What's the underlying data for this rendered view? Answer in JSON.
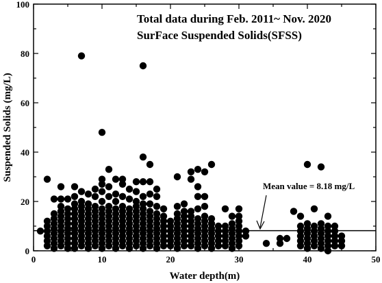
{
  "chart_data": {
    "type": "scatter",
    "title": "Total data during Feb. 2011~ Nov. 2020",
    "subtitle": "SurFace Suspended Solids(SFSS)",
    "xlabel": "Water depth(m)",
    "ylabel": "Suspended Solids (mg/L)",
    "xlim": [
      0,
      50
    ],
    "ylim": [
      0,
      100
    ],
    "xticks": [
      0,
      10,
      20,
      30,
      40,
      50
    ],
    "yticks": [
      0,
      20,
      40,
      60,
      80,
      100
    ],
    "grid": false,
    "legend": "none",
    "mean_line": {
      "y": 8.18,
      "label": "Mean value = 8.18 mg/L"
    },
    "marker_color": "#000000",
    "series": [
      {
        "points": [
          [
            1,
            8
          ],
          [
            2,
            29
          ],
          [
            2,
            12
          ],
          [
            2,
            10
          ],
          [
            2,
            8
          ],
          [
            2,
            6
          ],
          [
            2,
            4
          ],
          [
            2,
            2
          ],
          [
            3,
            21
          ],
          [
            3,
            15
          ],
          [
            3,
            13
          ],
          [
            3,
            11
          ],
          [
            3,
            9
          ],
          [
            3,
            7
          ],
          [
            3,
            5
          ],
          [
            3,
            3
          ],
          [
            3,
            1
          ],
          [
            4,
            26
          ],
          [
            4,
            21
          ],
          [
            4,
            18
          ],
          [
            4,
            16
          ],
          [
            4,
            14
          ],
          [
            4,
            12
          ],
          [
            4,
            10
          ],
          [
            4,
            8
          ],
          [
            4,
            6
          ],
          [
            4,
            4
          ],
          [
            4,
            2
          ],
          [
            5,
            21
          ],
          [
            5,
            17
          ],
          [
            5,
            15
          ],
          [
            5,
            13
          ],
          [
            5,
            11
          ],
          [
            5,
            9
          ],
          [
            5,
            7
          ],
          [
            5,
            5
          ],
          [
            5,
            3
          ],
          [
            5,
            1
          ],
          [
            6,
            26
          ],
          [
            6,
            22
          ],
          [
            6,
            19
          ],
          [
            6,
            17
          ],
          [
            6,
            15
          ],
          [
            6,
            13
          ],
          [
            6,
            11
          ],
          [
            6,
            9
          ],
          [
            6,
            7
          ],
          [
            6,
            5
          ],
          [
            6,
            3
          ],
          [
            6,
            1
          ],
          [
            7,
            79
          ],
          [
            7,
            24
          ],
          [
            7,
            20
          ],
          [
            7,
            18
          ],
          [
            7,
            16
          ],
          [
            7,
            14
          ],
          [
            7,
            12
          ],
          [
            7,
            10
          ],
          [
            7,
            8
          ],
          [
            7,
            6
          ],
          [
            7,
            4
          ],
          [
            7,
            2
          ],
          [
            8,
            23
          ],
          [
            8,
            19
          ],
          [
            8,
            17
          ],
          [
            8,
            15
          ],
          [
            8,
            13
          ],
          [
            8,
            11
          ],
          [
            8,
            9
          ],
          [
            8,
            7
          ],
          [
            8,
            5
          ],
          [
            8,
            3
          ],
          [
            8,
            1
          ],
          [
            9,
            25
          ],
          [
            9,
            22
          ],
          [
            9,
            18
          ],
          [
            9,
            16
          ],
          [
            9,
            14
          ],
          [
            9,
            12
          ],
          [
            9,
            10
          ],
          [
            9,
            8
          ],
          [
            9,
            6
          ],
          [
            9,
            4
          ],
          [
            9,
            2
          ],
          [
            10,
            48
          ],
          [
            10,
            29
          ],
          [
            10,
            27
          ],
          [
            10,
            24
          ],
          [
            10,
            20
          ],
          [
            10,
            17
          ],
          [
            10,
            15
          ],
          [
            10,
            13
          ],
          [
            10,
            11
          ],
          [
            10,
            9
          ],
          [
            10,
            7
          ],
          [
            10,
            5
          ],
          [
            10,
            3
          ],
          [
            10,
            1
          ],
          [
            11,
            33
          ],
          [
            11,
            26
          ],
          [
            11,
            22
          ],
          [
            11,
            18
          ],
          [
            11,
            16
          ],
          [
            11,
            14
          ],
          [
            11,
            12
          ],
          [
            11,
            10
          ],
          [
            11,
            8
          ],
          [
            11,
            6
          ],
          [
            11,
            4
          ],
          [
            11,
            2
          ],
          [
            12,
            29
          ],
          [
            12,
            23
          ],
          [
            12,
            20
          ],
          [
            12,
            17
          ],
          [
            12,
            15
          ],
          [
            12,
            13
          ],
          [
            12,
            11
          ],
          [
            12,
            9
          ],
          [
            12,
            7
          ],
          [
            12,
            5
          ],
          [
            12,
            3
          ],
          [
            12,
            1
          ],
          [
            13,
            29
          ],
          [
            13,
            27
          ],
          [
            13,
            22
          ],
          [
            13,
            18
          ],
          [
            13,
            16
          ],
          [
            13,
            14
          ],
          [
            13,
            12
          ],
          [
            13,
            10
          ],
          [
            13,
            8
          ],
          [
            13,
            6
          ],
          [
            13,
            4
          ],
          [
            13,
            2
          ],
          [
            14,
            25
          ],
          [
            14,
            21
          ],
          [
            14,
            17
          ],
          [
            14,
            15
          ],
          [
            14,
            13
          ],
          [
            14,
            11
          ],
          [
            14,
            9
          ],
          [
            14,
            7
          ],
          [
            14,
            5
          ],
          [
            14,
            3
          ],
          [
            14,
            1
          ],
          [
            15,
            28
          ],
          [
            15,
            24
          ],
          [
            15,
            20
          ],
          [
            15,
            18
          ],
          [
            15,
            16
          ],
          [
            15,
            14
          ],
          [
            15,
            12
          ],
          [
            15,
            10
          ],
          [
            15,
            8
          ],
          [
            15,
            6
          ],
          [
            15,
            4
          ],
          [
            15,
            2
          ],
          [
            16,
            75
          ],
          [
            16,
            38
          ],
          [
            16,
            28
          ],
          [
            16,
            22
          ],
          [
            16,
            19
          ],
          [
            16,
            17
          ],
          [
            16,
            15
          ],
          [
            16,
            13
          ],
          [
            16,
            11
          ],
          [
            16,
            9
          ],
          [
            16,
            7
          ],
          [
            16,
            5
          ],
          [
            16,
            3
          ],
          [
            16,
            1
          ],
          [
            17,
            35
          ],
          [
            17,
            28
          ],
          [
            17,
            23
          ],
          [
            17,
            19
          ],
          [
            17,
            16
          ],
          [
            17,
            14
          ],
          [
            17,
            12
          ],
          [
            17,
            10
          ],
          [
            17,
            8
          ],
          [
            17,
            6
          ],
          [
            17,
            4
          ],
          [
            17,
            2
          ],
          [
            18,
            25
          ],
          [
            18,
            22
          ],
          [
            18,
            18
          ],
          [
            18,
            15
          ],
          [
            18,
            13
          ],
          [
            18,
            11
          ],
          [
            18,
            9
          ],
          [
            18,
            7
          ],
          [
            18,
            5
          ],
          [
            18,
            3
          ],
          [
            18,
            1
          ],
          [
            19,
            17
          ],
          [
            19,
            14
          ],
          [
            19,
            12
          ],
          [
            19,
            10
          ],
          [
            19,
            8
          ],
          [
            19,
            6
          ],
          [
            19,
            4
          ],
          [
            19,
            2
          ],
          [
            20,
            12
          ],
          [
            20,
            10
          ],
          [
            20,
            8
          ],
          [
            20,
            6
          ],
          [
            20,
            4
          ],
          [
            20,
            2
          ],
          [
            21,
            30
          ],
          [
            21,
            18
          ],
          [
            21,
            15
          ],
          [
            21,
            13
          ],
          [
            21,
            11
          ],
          [
            21,
            9
          ],
          [
            21,
            7
          ],
          [
            21,
            5
          ],
          [
            21,
            3
          ],
          [
            21,
            1
          ],
          [
            22,
            19
          ],
          [
            22,
            16
          ],
          [
            22,
            14
          ],
          [
            22,
            12
          ],
          [
            22,
            10
          ],
          [
            22,
            8
          ],
          [
            22,
            6
          ],
          [
            22,
            4
          ],
          [
            22,
            2
          ],
          [
            23,
            32
          ],
          [
            23,
            29
          ],
          [
            23,
            16
          ],
          [
            23,
            14
          ],
          [
            23,
            12
          ],
          [
            23,
            10
          ],
          [
            23,
            8
          ],
          [
            23,
            6
          ],
          [
            23,
            4
          ],
          [
            23,
            2
          ],
          [
            24,
            33
          ],
          [
            24,
            26
          ],
          [
            24,
            22
          ],
          [
            24,
            17
          ],
          [
            24,
            13
          ],
          [
            24,
            11
          ],
          [
            24,
            9
          ],
          [
            24,
            7
          ],
          [
            24,
            5
          ],
          [
            24,
            3
          ],
          [
            24,
            1
          ],
          [
            25,
            32
          ],
          [
            25,
            22
          ],
          [
            25,
            18
          ],
          [
            25,
            14
          ],
          [
            25,
            12
          ],
          [
            25,
            10
          ],
          [
            25,
            8
          ],
          [
            25,
            6
          ],
          [
            25,
            4
          ],
          [
            25,
            2
          ],
          [
            26,
            35
          ],
          [
            26,
            13
          ],
          [
            26,
            11
          ],
          [
            26,
            9
          ],
          [
            26,
            7
          ],
          [
            26,
            5
          ],
          [
            26,
            3
          ],
          [
            26,
            1
          ],
          [
            27,
            10
          ],
          [
            27,
            8
          ],
          [
            27,
            6
          ],
          [
            27,
            4
          ],
          [
            27,
            2
          ],
          [
            28,
            17
          ],
          [
            28,
            10
          ],
          [
            28,
            8
          ],
          [
            28,
            6
          ],
          [
            28,
            4
          ],
          [
            28,
            2
          ],
          [
            29,
            14
          ],
          [
            29,
            11
          ],
          [
            29,
            9
          ],
          [
            29,
            7
          ],
          [
            29,
            5
          ],
          [
            29,
            3
          ],
          [
            29,
            1
          ],
          [
            30,
            17
          ],
          [
            30,
            14
          ],
          [
            30,
            12
          ],
          [
            30,
            10
          ],
          [
            30,
            8
          ],
          [
            30,
            6
          ],
          [
            30,
            4
          ],
          [
            30,
            2
          ],
          [
            31,
            8
          ],
          [
            31,
            6
          ],
          [
            34,
            3
          ],
          [
            36,
            5
          ],
          [
            36,
            3
          ],
          [
            37,
            5
          ],
          [
            38,
            16
          ],
          [
            39,
            14
          ],
          [
            39,
            10
          ],
          [
            39,
            8
          ],
          [
            39,
            6
          ],
          [
            39,
            4
          ],
          [
            39,
            2
          ],
          [
            40,
            35
          ],
          [
            40,
            11
          ],
          [
            40,
            9
          ],
          [
            40,
            7
          ],
          [
            40,
            5
          ],
          [
            40,
            3
          ],
          [
            40,
            1
          ],
          [
            41,
            17
          ],
          [
            41,
            10
          ],
          [
            41,
            8
          ],
          [
            41,
            6
          ],
          [
            41,
            4
          ],
          [
            41,
            2
          ],
          [
            42,
            34
          ],
          [
            42,
            11
          ],
          [
            42,
            9
          ],
          [
            42,
            7
          ],
          [
            42,
            5
          ],
          [
            42,
            3
          ],
          [
            42,
            1
          ],
          [
            43,
            14
          ],
          [
            43,
            10
          ],
          [
            43,
            8
          ],
          [
            43,
            6
          ],
          [
            43,
            4
          ],
          [
            43,
            2
          ],
          [
            43,
            0
          ],
          [
            44,
            10
          ],
          [
            44,
            8
          ],
          [
            44,
            6
          ],
          [
            44,
            4
          ],
          [
            44,
            2
          ],
          [
            45,
            6
          ],
          [
            45,
            4
          ],
          [
            45,
            2
          ]
        ]
      }
    ]
  }
}
